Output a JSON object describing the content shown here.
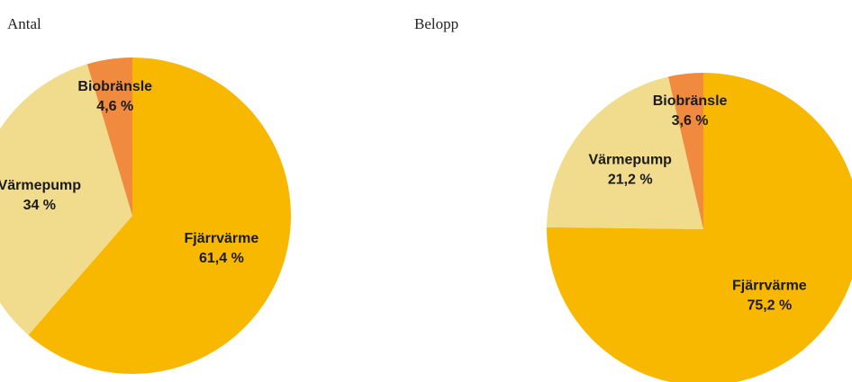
{
  "chart_data": [
    {
      "type": "pie",
      "title": "Antal",
      "categories": [
        "Fjärrvärme",
        "Värmepump",
        "Biobränsle"
      ],
      "values": [
        61.4,
        34,
        4.6
      ],
      "value_labels": [
        "61,4 %",
        "34 %",
        "4,6 %"
      ],
      "colors": [
        "#f9b800",
        "#f0dc8c",
        "#ef8a3f"
      ]
    },
    {
      "type": "pie",
      "title": "Belopp",
      "categories": [
        "Fjärrvärme",
        "Värmepump",
        "Biobränsle"
      ],
      "values": [
        75.2,
        21.2,
        3.6
      ],
      "value_labels": [
        "75,2 %",
        "21,2 %",
        "3,6 %"
      ],
      "colors": [
        "#f9b800",
        "#f0dc8c",
        "#ef8a3f"
      ]
    }
  ]
}
